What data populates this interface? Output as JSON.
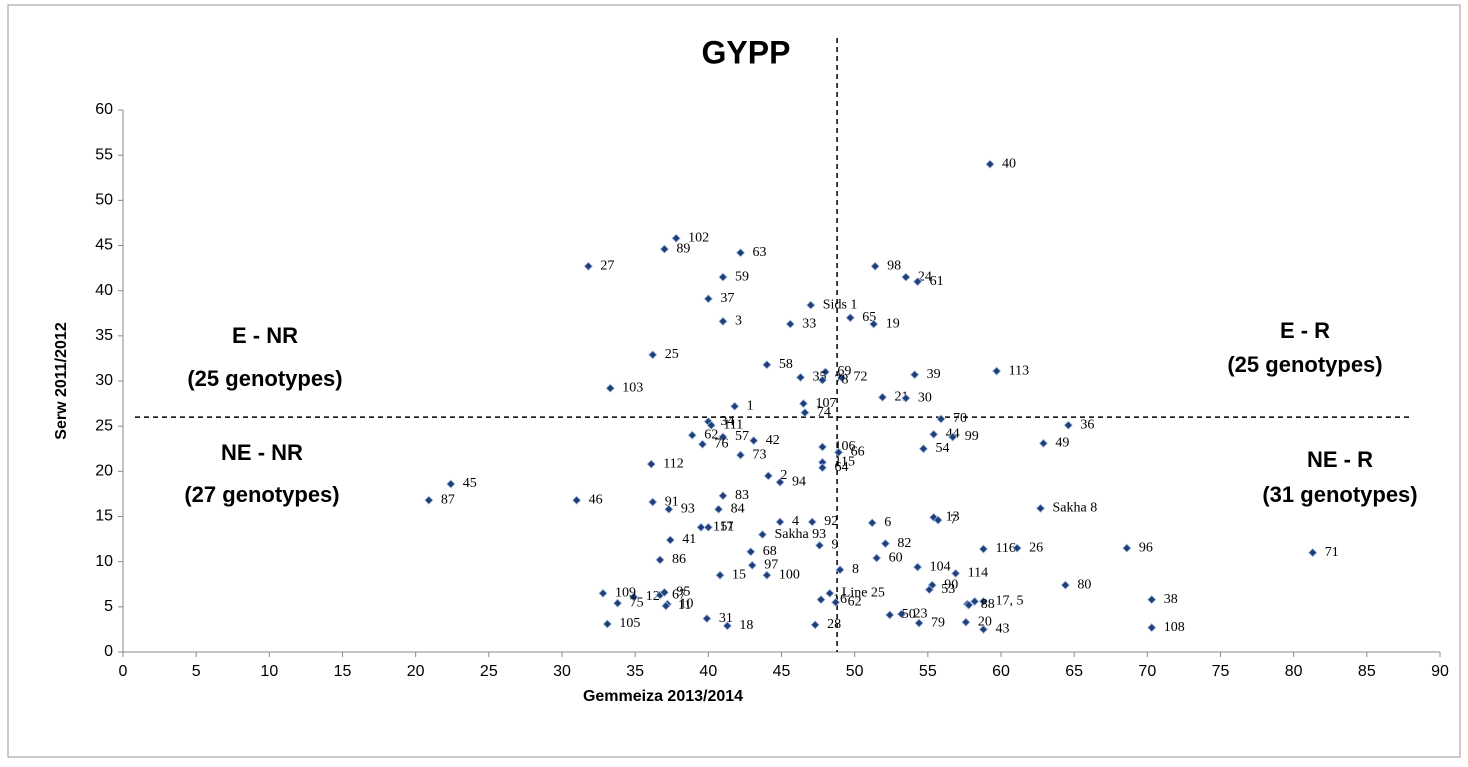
{
  "chart_data": {
    "type": "scatter",
    "title": "GYPP",
    "x_label": "Gemmeiza 2013/2014",
    "y_label": "Serw 2011/2012",
    "xlim": [
      0,
      90
    ],
    "ylim": [
      0,
      60
    ],
    "xticks": [
      0,
      5,
      10,
      15,
      20,
      25,
      30,
      35,
      40,
      45,
      50,
      55,
      60,
      65,
      70,
      75,
      80,
      85,
      90
    ],
    "yticks": [
      0,
      5,
      10,
      15,
      20,
      25,
      30,
      35,
      40,
      45,
      50,
      55,
      60
    ],
    "color": "#1f3f7a",
    "reference_lines": {
      "x": 48.8,
      "y": 26
    },
    "quadrants": [
      {
        "name": "E - NR",
        "note": "(25 genotypes)"
      },
      {
        "name": "E - R",
        "note": "(25 genotypes)"
      },
      {
        "name": "NE - NR",
        "note": "(27 genotypes)"
      },
      {
        "name": "NE - R",
        "note": "(31 genotypes)"
      }
    ],
    "point_labels": [
      "40",
      "102",
      "89",
      "63",
      "27",
      "59",
      "98",
      "24",
      "61",
      "37",
      "Sids 1",
      "65",
      "3",
      "33",
      "19",
      "25",
      "58",
      "69",
      "35",
      "72",
      "39",
      "113",
      "103",
      "21",
      "30",
      "78",
      "107",
      "1",
      "74",
      "34",
      "111",
      "70",
      "36",
      "62",
      "57",
      "42",
      "106",
      "66",
      "44",
      "99",
      "49",
      "76",
      "112",
      "73",
      "2",
      "115",
      "64",
      "54",
      "45",
      "87",
      "46",
      "91",
      "83",
      "94",
      "93",
      "84",
      "13",
      "7",
      "Sakha 8",
      "117",
      "51",
      "4",
      "92",
      "6",
      "Sakha 93",
      "41",
      "9",
      "82",
      "116",
      "26",
      "96",
      "71",
      "68",
      "86",
      "60",
      "97",
      "104",
      "114",
      "8",
      "15",
      "100",
      "90",
      "80",
      "12",
      "67",
      "95",
      "109",
      "Line 25",
      "53",
      null,
      null,
      "17, 5",
      "75",
      "10",
      "16",
      "38",
      "62",
      "23",
      "50",
      "88",
      "20",
      "43",
      "79",
      "108",
      "105",
      "11",
      "31",
      "18",
      "28"
    ],
    "x": [
      59.25,
      37.8,
      37.0,
      42.2,
      31.8,
      41.0,
      51.4,
      53.5,
      54.3,
      40.0,
      47.0,
      49.7,
      41.0,
      45.6,
      51.3,
      36.2,
      44.0,
      48.0,
      46.3,
      49.1,
      54.1,
      59.7,
      33.3,
      51.9,
      53.5,
      47.8,
      46.5,
      41.8,
      46.6,
      40.0,
      40.2,
      55.9,
      64.6,
      38.9,
      41.0,
      43.1,
      47.8,
      48.9,
      55.4,
      56.7,
      62.9,
      39.6,
      36.1,
      42.2,
      44.1,
      47.8,
      47.8,
      54.7,
      22.4,
      20.9,
      31.0,
      36.2,
      41.0,
      44.9,
      37.3,
      40.7,
      55.4,
      55.7,
      62.7,
      39.5,
      40.0,
      44.9,
      47.1,
      51.2,
      43.7,
      37.4,
      47.6,
      52.1,
      58.8,
      61.1,
      68.6,
      81.3,
      42.9,
      36.7,
      51.5,
      43.0,
      54.3,
      56.9,
      49.0,
      40.8,
      44.0,
      55.3,
      64.4,
      34.9,
      36.7,
      37.0,
      32.8,
      48.3,
      55.1,
      57.7,
      58.2,
      58.8,
      33.8,
      37.2,
      47.7,
      70.3,
      48.7,
      53.2,
      52.4,
      57.8,
      57.6,
      58.8,
      54.4,
      70.3,
      33.1,
      37.1,
      39.9,
      41.3,
      47.3
    ],
    "values": [
      54.0,
      45.8,
      44.6,
      44.2,
      42.7,
      41.5,
      42.7,
      41.5,
      41.0,
      39.1,
      38.4,
      37.0,
      36.6,
      36.3,
      36.3,
      32.9,
      31.8,
      31.0,
      30.4,
      30.4,
      30.7,
      31.1,
      29.2,
      28.2,
      28.1,
      30.1,
      27.5,
      27.2,
      26.5,
      25.5,
      25.1,
      25.8,
      25.1,
      24.0,
      23.8,
      23.4,
      22.7,
      22.1,
      24.1,
      23.8,
      23.1,
      23.0,
      20.8,
      21.8,
      19.5,
      21.0,
      20.4,
      22.5,
      18.6,
      16.8,
      16.8,
      16.6,
      17.3,
      18.8,
      15.8,
      15.8,
      14.9,
      14.6,
      15.9,
      13.8,
      13.8,
      14.4,
      14.4,
      14.3,
      13.0,
      12.4,
      11.8,
      12.0,
      11.4,
      11.5,
      11.5,
      11.0,
      11.1,
      10.2,
      10.4,
      9.6,
      9.4,
      8.7,
      9.1,
      8.5,
      8.5,
      7.4,
      7.4,
      6.1,
      6.3,
      6.6,
      6.5,
      6.5,
      6.9,
      5.3,
      5.6,
      5.6,
      5.4,
      5.3,
      5.8,
      5.8,
      5.5,
      4.2,
      4.1,
      5.2,
      3.3,
      2.5,
      3.2,
      2.7,
      3.1,
      5.1,
      3.7,
      2.9,
      3.0
    ]
  }
}
